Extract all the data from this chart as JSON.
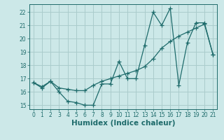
{
  "x_values": [
    0,
    1,
    2,
    3,
    4,
    5,
    6,
    7,
    8,
    9,
    10,
    11,
    12,
    13,
    14,
    15,
    16,
    17,
    18,
    19,
    20,
    21
  ],
  "line1_y": [
    16.7,
    16.3,
    16.8,
    16.0,
    15.3,
    15.2,
    15.0,
    15.0,
    16.6,
    16.6,
    18.3,
    17.0,
    17.0,
    19.5,
    22.0,
    21.0,
    22.3,
    16.5,
    19.7,
    21.2,
    21.2,
    18.8
  ],
  "line2_y": [
    16.7,
    16.4,
    16.8,
    16.3,
    16.2,
    16.1,
    16.1,
    16.5,
    16.8,
    17.0,
    17.2,
    17.4,
    17.6,
    17.9,
    18.5,
    19.3,
    19.8,
    20.2,
    20.5,
    20.8,
    21.1,
    18.8
  ],
  "bg_color": "#cce8e8",
  "line_color": "#1e6b6b",
  "grid_color": "#aacccc",
  "xlabel": "Humidex (Indice chaleur)",
  "xlim": [
    -0.5,
    21.5
  ],
  "ylim": [
    14.7,
    22.6
  ],
  "xtick_labels": [
    "0",
    "1",
    "2",
    "3",
    "4",
    "5",
    "6",
    "7",
    "8",
    "9",
    "10",
    "11",
    "12",
    "13",
    "14",
    "15",
    "16",
    "17",
    "18",
    "19",
    "20",
    "21"
  ],
  "ytick_values": [
    15,
    16,
    17,
    18,
    19,
    20,
    21,
    22
  ],
  "marker_size": 2.5,
  "linewidth": 0.9,
  "xlabel_fontsize": 7.5,
  "tick_fontsize": 5.5
}
